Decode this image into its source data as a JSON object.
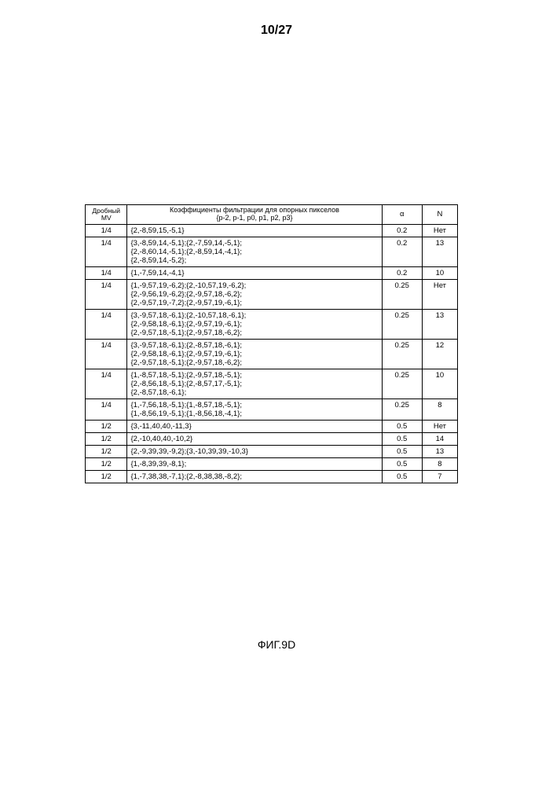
{
  "page_number": "10/27",
  "caption": "ФИГ.9D",
  "header": {
    "mv_line1": "Дробный",
    "mv_line2": "MV",
    "coef_line1": "Коэффициенты фильтрации для опорных пикселов",
    "coef_line2": "{p-2, p-1, p0, p1, p2, p3}",
    "alpha": "α",
    "n": "N"
  },
  "rows": [
    {
      "mv": "1/4",
      "coef": "{2,-8,59,15,-5,1}",
      "alpha": "0.2",
      "n": "Нет"
    },
    {
      "mv": "1/4",
      "coef": "{3,-8,59,14,-5,1};{2,-7,59,14,-5,1};\n{2,-8,60,14,-5,1};{2,-8,59,14,-4,1};\n{2,-8,59,14,-5,2};",
      "alpha": "0.2",
      "n": "13"
    },
    {
      "mv": "1/4",
      "coef": "{1,-7,59,14,-4,1}",
      "alpha": "0.2",
      "n": "10"
    },
    {
      "mv": "1/4",
      "coef": "{1,-9,57,19,-6,2};{2,-10,57,19,-6,2};\n{2,-9,56,19,-6,2};{2,-9,57,18,-6,2};\n{2,-9,57,19,-7,2};{2,-9,57,19,-6,1};",
      "alpha": "0.25",
      "n": "Нет"
    },
    {
      "mv": "1/4",
      "coef": "{3,-9,57,18,-6,1};{2,-10,57,18,-6,1};\n{2,-9,58,18,-6,1};{2,-9,57,19,-6,1};\n{2,-9,57,18,-5,1};{2,-9,57,18,-6,2};",
      "alpha": "0.25",
      "n": "13"
    },
    {
      "mv": "1/4",
      "coef": "{3,-9,57,18,-6,1};{2,-8,57,18,-6,1};\n{2,-9,58,18,-6,1};{2,-9,57,19,-6,1};\n{2,-9,57,18,-5,1};{2,-9,57,18,-6,2};",
      "alpha": "0.25",
      "n": "12"
    },
    {
      "mv": "1/4",
      "coef": "{1,-8,57,18,-5,1};{2,-9,57,18,-5,1};\n{2,-8,56,18,-5,1};{2,-8,57,17,-5,1};\n{2,-8,57,18,-6,1};",
      "alpha": "0.25",
      "n": "10"
    },
    {
      "mv": "1/4",
      "coef": "{1,-7,56,18,-5,1};{1,-8,57,18,-5,1};\n{1,-8,56,19,-5,1};{1,-8,56,18,-4,1};",
      "alpha": "0.25",
      "n": "8"
    },
    {
      "mv": "1/2",
      "coef": "{3,-11,40,40,-11,3}",
      "alpha": "0.5",
      "n": "Нет"
    },
    {
      "mv": "1/2",
      "coef": "{2,-10,40,40,-10,2}",
      "alpha": "0.5",
      "n": "14"
    },
    {
      "mv": "1/2",
      "coef": "{2,-9,39,39,-9,2};{3,-10,39,39,-10,3}",
      "alpha": "0.5",
      "n": "13"
    },
    {
      "mv": "1/2",
      "coef": "{1,-8,39,39,-8,1};",
      "alpha": "0.5",
      "n": "8"
    },
    {
      "mv": "1/2",
      "coef": "{1,-7,38,38,-7,1};{2,-8,38,38,-8,2};",
      "alpha": "0.5",
      "n": "7"
    }
  ]
}
